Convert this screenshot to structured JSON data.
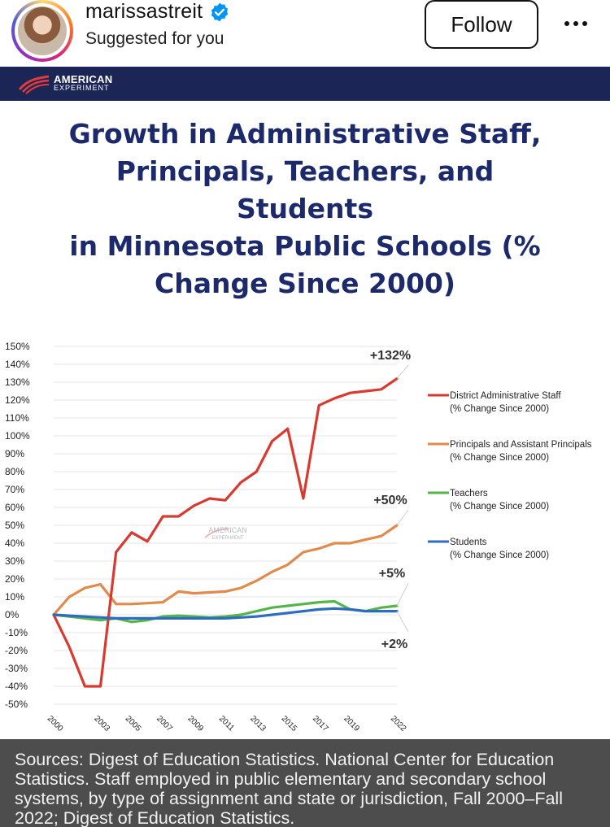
{
  "post": {
    "username": "marissastreit",
    "subtitle": "Suggested for you",
    "follow_label": "Follow",
    "verified_icon": "verified-badge-icon",
    "more_icon": "more-options-icon"
  },
  "brand": {
    "line1": "AMERICAN",
    "line2": "EXPERIMENT"
  },
  "watermark": {
    "line1": "AMERICAN",
    "line2": "EXPERIMENT"
  },
  "colors": {
    "title": "#1c2a6b",
    "brand_bar": "#1b2556",
    "admin": "#d83a2f",
    "principals": "#e08a4b",
    "teachers": "#55b54a",
    "students": "#2e6cc0"
  },
  "sources_text": "Sources: Digest of Education Statistics. National Center for Education Statistics. Staff employed in public elementary and secondary school systems, by type of assignment and state or jurisdiction, Fall 2000–Fall 2022; Digest of Education Statistics.",
  "chart_data": {
    "type": "line",
    "title": "Growth in Administrative Staff, Principals, Teachers, and Students in Minnesota Public Schools (% Change Since 2000)",
    "title_lines": [
      "Growth in Administrative Staff,",
      "Principals, Teachers, and",
      "Students",
      "in Minnesota Public Schools (%",
      "Change Since 2000)"
    ],
    "xlabel": "",
    "ylabel": "",
    "ylim": [
      -50,
      150
    ],
    "y_ticks": [
      150,
      140,
      130,
      120,
      110,
      100,
      90,
      80,
      70,
      60,
      50,
      40,
      30,
      20,
      10,
      0,
      -10,
      -20,
      -30,
      -40,
      -50
    ],
    "y_tick_labels": [
      "150%",
      "140%",
      "130%",
      "120%",
      "110%",
      "100%",
      "90%",
      "80%",
      "70%",
      "60%",
      "50%",
      "40%",
      "30%",
      "20%",
      "10%",
      "0%",
      "-10%",
      "-20%",
      "-30%",
      "-40%",
      "-50%"
    ],
    "x_ticks": [
      2000,
      2003,
      2005,
      2007,
      2009,
      2011,
      2013,
      2015,
      2017,
      2019,
      2022
    ],
    "x": [
      2000,
      2001,
      2002,
      2003,
      2004,
      2005,
      2006,
      2007,
      2008,
      2009,
      2010,
      2011,
      2012,
      2013,
      2014,
      2015,
      2016,
      2017,
      2018,
      2019,
      2020,
      2021,
      2022
    ],
    "series": [
      {
        "key": "admin",
        "name": "District Administrative Staff",
        "name_sub": "(% Change Since 2000)",
        "values": [
          0,
          -18,
          -40,
          -40,
          35,
          46,
          41,
          55,
          55,
          61,
          65,
          64,
          74,
          80,
          97,
          104,
          65,
          117,
          121,
          124,
          125,
          126,
          132
        ],
        "end_label": "+132%"
      },
      {
        "key": "principals",
        "name": "Principals and Assistant Principals",
        "name_sub": "(% Change Since 2000)",
        "values": [
          0,
          10,
          15,
          17,
          6,
          6,
          6.5,
          7,
          13,
          12,
          12.5,
          13,
          15,
          19,
          24,
          28,
          35,
          37,
          40,
          40,
          42,
          44,
          50
        ],
        "end_label": "+50%"
      },
      {
        "key": "teachers",
        "name": "Teachers",
        "name_sub": "(% Change Since 2000)",
        "values": [
          0,
          -1,
          -2,
          -3,
          -2,
          -4,
          -3,
          -1,
          -0.5,
          -1,
          -1.5,
          -1,
          0,
          2,
          4,
          5,
          6,
          7,
          7.5,
          3,
          2,
          4,
          5
        ],
        "end_label": "+5%"
      },
      {
        "key": "students",
        "name": "Students",
        "name_sub": "(% Change Since 2000)",
        "values": [
          0,
          -0.5,
          -1,
          -1.5,
          -2,
          -2,
          -2,
          -2,
          -2,
          -2,
          -2,
          -2,
          -1.5,
          -1,
          0,
          1,
          2,
          3,
          3.5,
          3,
          2,
          2,
          2
        ],
        "end_label": "+2%"
      }
    ]
  }
}
